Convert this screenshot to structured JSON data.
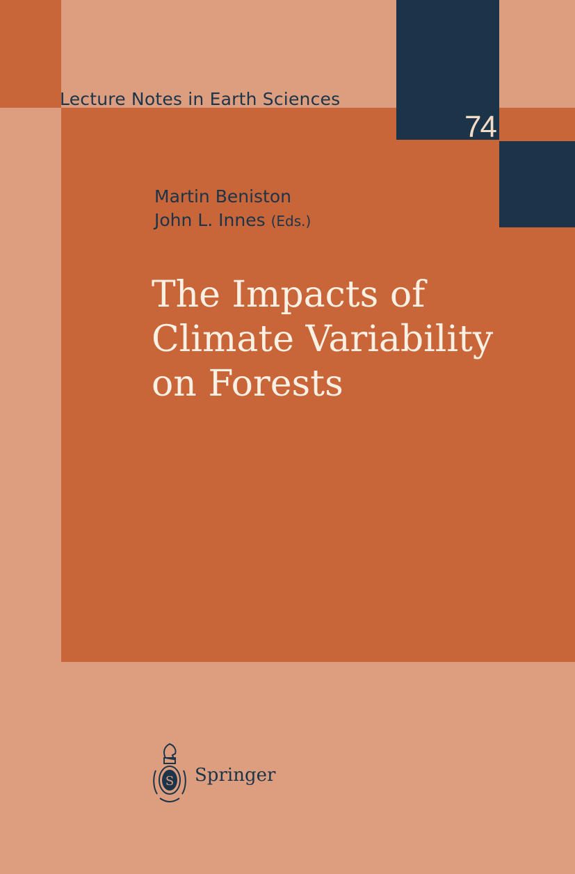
{
  "cover": {
    "series": "Lecture Notes in Earth Sciences",
    "volume": "74",
    "editors": [
      "Martin Beniston",
      "John L. Innes"
    ],
    "editors_suffix": "(Eds.)",
    "title_lines": [
      "The Impacts of",
      "Climate Variability",
      "on Forests"
    ],
    "publisher": "Springer",
    "publisher_logo": "springer-knight-logo"
  },
  "colors": {
    "background": "#dc9e7f",
    "accent": "#c8663a",
    "navy": "#1b3449",
    "title_text": "#fbf0e4"
  }
}
